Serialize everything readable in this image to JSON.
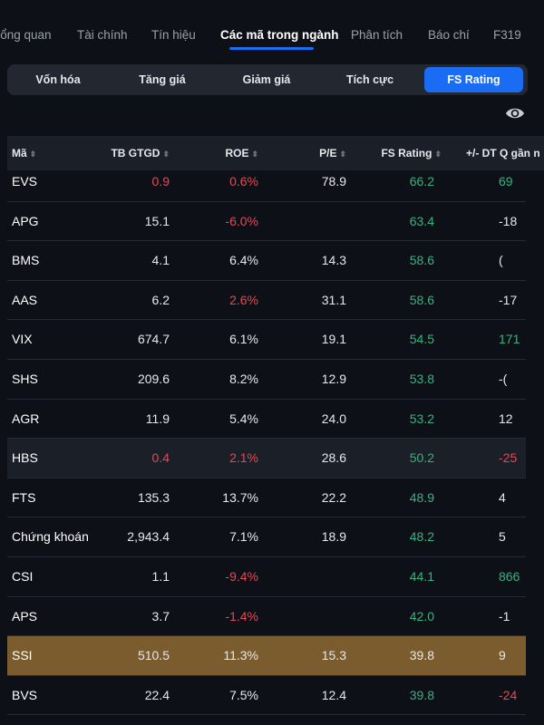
{
  "top_tabs": [
    {
      "label": "Tổng quan",
      "active": false
    },
    {
      "label": "Tài chính",
      "active": false
    },
    {
      "label": "Tín hiệu",
      "active": false
    },
    {
      "label": "Các mã trong ngành",
      "active": true
    },
    {
      "label": "Phân tích",
      "active": false
    },
    {
      "label": "Báo chí",
      "active": false
    },
    {
      "label": "F319",
      "active": false
    }
  ],
  "segments": [
    {
      "label": "Vốn hóa",
      "active": false
    },
    {
      "label": "Tăng giá",
      "active": false
    },
    {
      "label": "Giảm giá",
      "active": false
    },
    {
      "label": "Tích cực",
      "active": false
    },
    {
      "label": "FS Rating",
      "active": true
    }
  ],
  "table": {
    "headers": [
      "Mã",
      "TB GTGD",
      "ROE",
      "P/E",
      "FS Rating",
      "+/- DT Q gần n"
    ],
    "rows": [
      {
        "sym": "EVS",
        "gtgd": "0.9",
        "roe": "0.6%",
        "pe": "78.9",
        "fs": "66.2",
        "dt": "69",
        "gtgd_color": "red",
        "roe_color": "red",
        "dt_color": "green"
      },
      {
        "sym": "APG",
        "gtgd": "15.1",
        "roe": "-6.0%",
        "pe": "",
        "fs": "63.4",
        "dt": "-18",
        "gtgd_color": "white",
        "roe_color": "red",
        "dt_color": "white"
      },
      {
        "sym": "BMS",
        "gtgd": "4.1",
        "roe": "6.4%",
        "pe": "14.3",
        "fs": "58.6",
        "dt": "(",
        "gtgd_color": "white",
        "roe_color": "white",
        "dt_color": "white"
      },
      {
        "sym": "AAS",
        "gtgd": "6.2",
        "roe": "2.6%",
        "pe": "31.1",
        "fs": "58.6",
        "dt": "-17",
        "gtgd_color": "white",
        "roe_color": "red",
        "dt_color": "white"
      },
      {
        "sym": "VIX",
        "gtgd": "674.7",
        "roe": "6.1%",
        "pe": "19.1",
        "fs": "54.5",
        "dt": "171",
        "gtgd_color": "white",
        "roe_color": "white",
        "dt_color": "green"
      },
      {
        "sym": "SHS",
        "gtgd": "209.6",
        "roe": "8.2%",
        "pe": "12.9",
        "fs": "53.8",
        "dt": "-(",
        "gtgd_color": "white",
        "roe_color": "white",
        "dt_color": "white"
      },
      {
        "sym": "AGR",
        "gtgd": "11.9",
        "roe": "5.4%",
        "pe": "24.0",
        "fs": "53.2",
        "dt": "12",
        "gtgd_color": "white",
        "roe_color": "white",
        "dt_color": "white"
      },
      {
        "sym": "HBS",
        "gtgd": "0.4",
        "roe": "2.1%",
        "pe": "28.6",
        "fs": "50.2",
        "dt": "-25",
        "gtgd_color": "red",
        "roe_color": "red",
        "dt_color": "red"
      },
      {
        "sym": "FTS",
        "gtgd": "135.3",
        "roe": "13.7%",
        "pe": "22.2",
        "fs": "48.9",
        "dt": "4",
        "gtgd_color": "white",
        "roe_color": "white",
        "dt_color": "white"
      },
      {
        "sym": "Chứng khoán",
        "gtgd": "2,943.4",
        "roe": "7.1%",
        "pe": "18.9",
        "fs": "48.2",
        "dt": "5",
        "gtgd_color": "white",
        "roe_color": "white",
        "dt_color": "white"
      },
      {
        "sym": "CSI",
        "gtgd": "1.1",
        "roe": "-9.4%",
        "pe": "",
        "fs": "44.1",
        "dt": "866",
        "gtgd_color": "white",
        "roe_color": "red",
        "dt_color": "green"
      },
      {
        "sym": "APS",
        "gtgd": "3.7",
        "roe": "-1.4%",
        "pe": "",
        "fs": "42.0",
        "dt": "-1",
        "gtgd_color": "white",
        "roe_color": "red",
        "dt_color": "white"
      },
      {
        "sym": "SSI",
        "gtgd": "510.5",
        "roe": "11.3%",
        "pe": "15.3",
        "fs": "39.8",
        "dt": "9",
        "gtgd_color": "white",
        "roe_color": "white",
        "dt_color": "white"
      },
      {
        "sym": "BVS",
        "gtgd": "22.4",
        "roe": "7.5%",
        "pe": "12.4",
        "fs": "39.8",
        "dt": "-24",
        "gtgd_color": "white",
        "roe_color": "white",
        "dt_color": "red"
      }
    ]
  },
  "colors": {
    "accent": "#1a6cf3",
    "positive": "#36b37e",
    "negative": "#e04a55",
    "highlight_gold": "#7a5c2e"
  },
  "icons": {
    "visibility": "eye-icon",
    "sort": "sort-icon"
  }
}
